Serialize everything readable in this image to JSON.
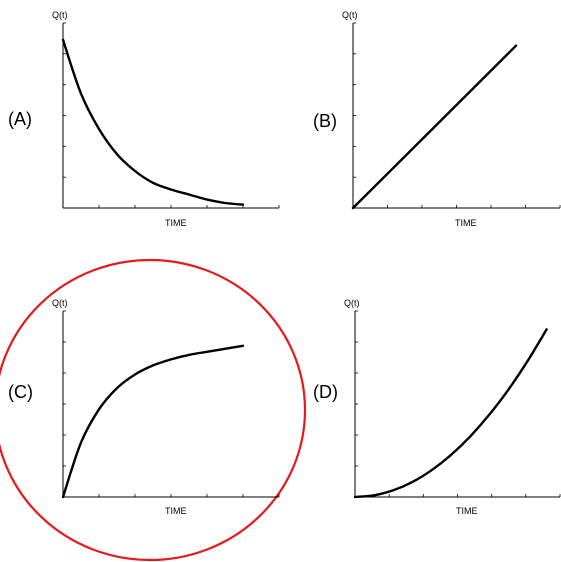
{
  "chart_data": [
    {
      "type": "line",
      "panel": "(A)",
      "ylabel": "Q(t)",
      "xlabel": "TIME",
      "shape": "exponential-decay",
      "x": [
        0,
        0.1,
        0.2,
        0.3,
        0.4,
        0.5,
        0.6,
        0.7,
        0.8,
        0.9,
        1.0
      ],
      "y": [
        1.0,
        0.68,
        0.47,
        0.32,
        0.22,
        0.15,
        0.11,
        0.08,
        0.05,
        0.03,
        0.02
      ],
      "xlim": [
        0,
        1.2
      ],
      "ylim": [
        0,
        1.1
      ]
    },
    {
      "type": "line",
      "panel": "(B)",
      "ylabel": "Q(t)",
      "xlabel": "TIME",
      "shape": "linear",
      "x": [
        0,
        1.0
      ],
      "y": [
        0,
        1.0
      ],
      "xlim": [
        0,
        1.27
      ],
      "ylim": [
        0,
        1.14
      ]
    },
    {
      "type": "line",
      "panel": "(C)",
      "ylabel": "Q(t)",
      "xlabel": "TIME",
      "shape": "exponential-saturation",
      "highlighted": true,
      "highlight_color": "#e41a1c",
      "x": [
        0,
        0.1,
        0.2,
        0.3,
        0.4,
        0.5,
        0.6,
        0.7,
        0.8,
        0.9,
        1.0
      ],
      "y": [
        0,
        0.36,
        0.58,
        0.72,
        0.81,
        0.87,
        0.91,
        0.94,
        0.96,
        0.98,
        1.0
      ],
      "xlim": [
        0,
        1.2
      ],
      "ylim": [
        0,
        1.23
      ]
    },
    {
      "type": "line",
      "panel": "(D)",
      "ylabel": "Q(t)",
      "xlabel": "TIME",
      "shape": "quadratic-growth",
      "x": [
        0,
        0.1,
        0.2,
        0.3,
        0.4,
        0.5,
        0.6,
        0.7,
        0.8,
        0.9,
        1.0
      ],
      "y": [
        0,
        0.01,
        0.04,
        0.09,
        0.16,
        0.25,
        0.36,
        0.49,
        0.64,
        0.81,
        1.0
      ],
      "xlim": [
        0,
        1.07
      ],
      "ylim": [
        0,
        1.11
      ]
    }
  ]
}
